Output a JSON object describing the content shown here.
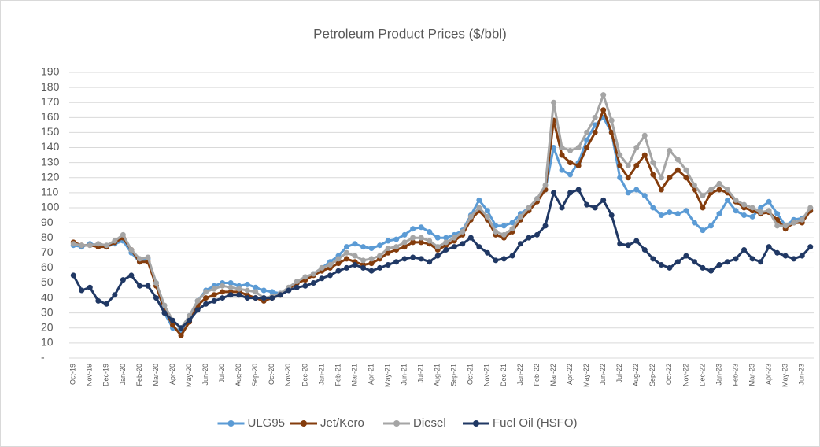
{
  "chart_data": {
    "type": "line",
    "title": "Petroleum Product Prices ($/bbl)",
    "categories": [
      "Oct-19",
      null,
      "Nov-19",
      null,
      "Dec-19",
      null,
      "Jan-20",
      null,
      "Feb-20",
      null,
      "Mar-20",
      null,
      "Apr-20",
      null,
      "May-20",
      null,
      "Jun-20",
      null,
      "Jul-20",
      null,
      "Aug-20",
      null,
      "Sep-20",
      null,
      "Oct-20",
      null,
      "Nov-20",
      null,
      "Dec-20",
      null,
      "Jan-21",
      null,
      "Feb-21",
      null,
      "Mar-21",
      null,
      "Apr-21",
      null,
      "May-21",
      null,
      "Jun-21",
      null,
      "Jul-21",
      null,
      "Aug-21",
      null,
      "Sep-21",
      null,
      "Oct-21",
      null,
      "Nov-21",
      null,
      "Dec-21",
      null,
      "Jan-22",
      null,
      "Feb-22",
      null,
      "Mar-22",
      null,
      "Apr-22",
      null,
      "May-22",
      null,
      "Jun-22",
      null,
      "Jul-22",
      null,
      "Aug-22",
      null,
      "Sep-22",
      null,
      "Oct-22",
      null,
      "Nov-22",
      null,
      "Dec-22",
      null,
      "Jan-23",
      null,
      "Feb-23",
      null,
      "Mar-23",
      null,
      "Apr-23",
      null,
      "May-23",
      null,
      "Jun-23",
      null
    ],
    "series": [
      {
        "name": "ULG95",
        "color": "#5b9bd5",
        "values": [
          75,
          74,
          76,
          75,
          74,
          76,
          78,
          70,
          64,
          66,
          50,
          30,
          20,
          18,
          28,
          38,
          45,
          48,
          50,
          50,
          48,
          49,
          47,
          45,
          44,
          43,
          46,
          50,
          53,
          56,
          60,
          64,
          68,
          74,
          76,
          74,
          73,
          75,
          78,
          79,
          82,
          86,
          87,
          84,
          80,
          80,
          82,
          85,
          95,
          105,
          98,
          88,
          88,
          90,
          96,
          100,
          106,
          112,
          140,
          125,
          122,
          130,
          145,
          155,
          160,
          150,
          120,
          110,
          112,
          108,
          100,
          95,
          97,
          96,
          98,
          90,
          85,
          88,
          96,
          105,
          98,
          95,
          94,
          100,
          104,
          96,
          88,
          92,
          93,
          98
        ]
      },
      {
        "name": "Jet/Kero",
        "color": "#843c0c",
        "values": [
          77,
          75,
          75,
          74,
          74,
          77,
          80,
          72,
          64,
          64,
          48,
          32,
          22,
          15,
          24,
          35,
          40,
          42,
          44,
          44,
          44,
          42,
          40,
          38,
          40,
          42,
          46,
          50,
          52,
          55,
          58,
          60,
          63,
          66,
          64,
          62,
          63,
          66,
          70,
          72,
          74,
          77,
          77,
          76,
          72,
          75,
          78,
          82,
          92,
          98,
          92,
          82,
          80,
          84,
          92,
          98,
          104,
          112,
          158,
          135,
          130,
          128,
          140,
          150,
          165,
          150,
          128,
          120,
          128,
          135,
          122,
          112,
          120,
          125,
          120,
          112,
          100,
          110,
          112,
          110,
          104,
          100,
          98,
          96,
          97,
          92,
          86,
          90,
          90,
          98
        ]
      },
      {
        "name": "Diesel",
        "color": "#a5a5a5",
        "values": [
          76,
          75,
          75,
          76,
          75,
          78,
          82,
          72,
          66,
          67,
          50,
          35,
          25,
          20,
          28,
          38,
          44,
          46,
          48,
          47,
          46,
          45,
          44,
          40,
          41,
          43,
          47,
          51,
          54,
          56,
          60,
          62,
          66,
          70,
          68,
          65,
          66,
          68,
          73,
          74,
          77,
          80,
          80,
          78,
          74,
          77,
          80,
          84,
          94,
          100,
          94,
          84,
          82,
          86,
          94,
          100,
          106,
          115,
          170,
          140,
          138,
          140,
          150,
          160,
          175,
          158,
          135,
          128,
          140,
          148,
          130,
          120,
          138,
          132,
          125,
          115,
          108,
          112,
          116,
          112,
          105,
          102,
          100,
          97,
          98,
          88,
          88,
          90,
          92,
          100
        ]
      },
      {
        "name": "Fuel Oil (HSFO)",
        "color": "#203864",
        "values": [
          55,
          45,
          47,
          38,
          36,
          42,
          52,
          55,
          48,
          48,
          40,
          30,
          25,
          20,
          25,
          32,
          36,
          38,
          40,
          42,
          42,
          40,
          40,
          40,
          40,
          42,
          45,
          47,
          48,
          50,
          53,
          55,
          58,
          60,
          62,
          60,
          58,
          60,
          62,
          64,
          66,
          67,
          66,
          64,
          68,
          72,
          74,
          76,
          80,
          74,
          70,
          65,
          66,
          68,
          76,
          80,
          82,
          88,
          110,
          100,
          110,
          112,
          102,
          100,
          105,
          95,
          76,
          75,
          78,
          72,
          66,
          62,
          60,
          64,
          68,
          64,
          60,
          58,
          62,
          64,
          66,
          72,
          66,
          64,
          74,
          70,
          68,
          66,
          68,
          74
        ]
      }
    ],
    "ylim": [
      0,
      190
    ],
    "yticks": [
      {
        "value": 0,
        "label": "-"
      },
      10,
      20,
      30,
      40,
      50,
      60,
      70,
      80,
      90,
      100,
      110,
      120,
      130,
      140,
      150,
      160,
      170,
      180,
      190
    ],
    "grid": true,
    "legend": "bottom"
  }
}
